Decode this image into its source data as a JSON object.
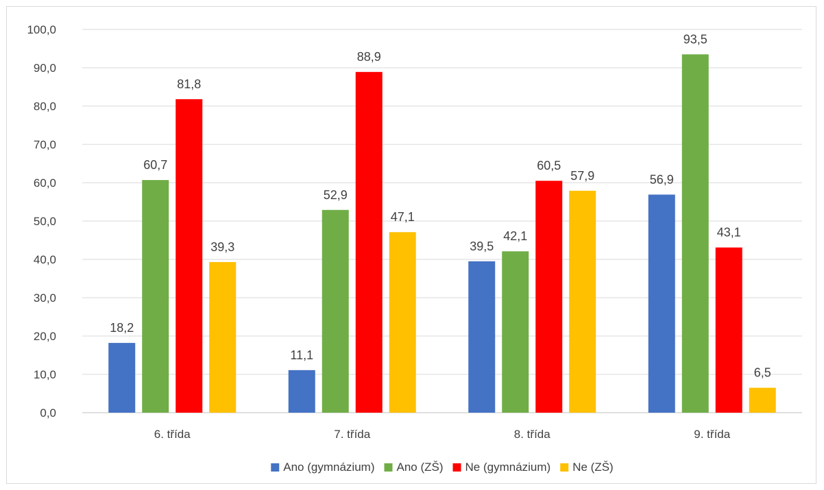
{
  "chart_data": {
    "type": "bar",
    "categories": [
      "6. třída",
      "7. třída",
      "8. třída",
      "9. třída"
    ],
    "series": [
      {
        "name": "Ano (gymnázium)",
        "color": "#4472C4",
        "values": [
          18.2,
          11.1,
          39.5,
          56.9
        ]
      },
      {
        "name": "Ano (ZŠ)",
        "color": "#70AD47",
        "values": [
          60.7,
          52.9,
          42.1,
          93.5
        ]
      },
      {
        "name": "Ne (gymnázium)",
        "color": "#FF0000",
        "values": [
          81.8,
          88.9,
          60.5,
          43.1
        ]
      },
      {
        "name": "Ne (ZŠ)",
        "color": "#FFC000",
        "values": [
          39.3,
          47.1,
          57.9,
          6.5
        ]
      }
    ],
    "y_ticks": [
      "0,0",
      "10,0",
      "20,0",
      "30,0",
      "40,0",
      "50,0",
      "60,0",
      "70,0",
      "80,0",
      "90,0",
      "100,0"
    ],
    "ylim": [
      0,
      100
    ],
    "y_step": 10,
    "grid": true,
    "legend_position": "bottom",
    "data_labels": true,
    "decimal_separator": ","
  }
}
